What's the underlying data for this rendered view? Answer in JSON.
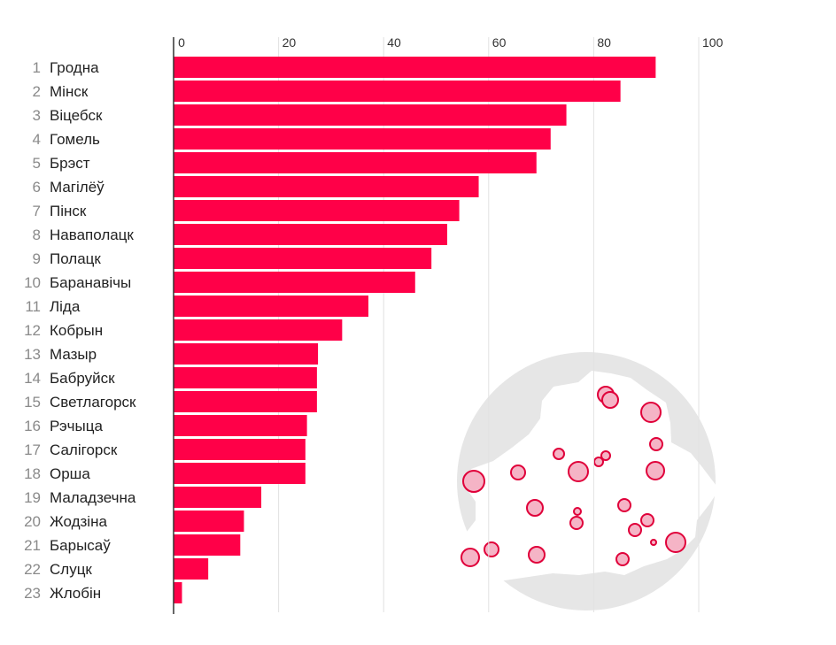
{
  "chart_data": {
    "type": "bar",
    "orientation": "horizontal",
    "title": "",
    "xlabel": "",
    "ylabel": "",
    "xlim": [
      0,
      100
    ],
    "x_ticks": [
      "0",
      "20",
      "40",
      "60",
      "80",
      "100"
    ],
    "grid": true,
    "bar_color": "#ff0048",
    "categories": [
      {
        "rank": "1",
        "name": "Гродна"
      },
      {
        "rank": "2",
        "name": "Мінск"
      },
      {
        "rank": "3",
        "name": "Віцебск"
      },
      {
        "rank": "4",
        "name": "Гомель"
      },
      {
        "rank": "5",
        "name": "Брэст"
      },
      {
        "rank": "6",
        "name": "Магілёў"
      },
      {
        "rank": "7",
        "name": "Пінск"
      },
      {
        "rank": "8",
        "name": "Наваполацк"
      },
      {
        "rank": "9",
        "name": "Полацк"
      },
      {
        "rank": "10",
        "name": "Баранавічы"
      },
      {
        "rank": "11",
        "name": "Ліда"
      },
      {
        "rank": "12",
        "name": "Кобрын"
      },
      {
        "rank": "13",
        "name": "Мазыр"
      },
      {
        "rank": "14",
        "name": "Бабруйск"
      },
      {
        "rank": "15",
        "name": "Светлагорск"
      },
      {
        "rank": "16",
        "name": "Рэчыца"
      },
      {
        "rank": "17",
        "name": "Салігорск"
      },
      {
        "rank": "18",
        "name": "Орша"
      },
      {
        "rank": "19",
        "name": "Маладзечна"
      },
      {
        "rank": "20",
        "name": "Жодзіна"
      },
      {
        "rank": "21",
        "name": "Барысаў"
      },
      {
        "rank": "22",
        "name": "Слуцк"
      },
      {
        "rank": "23",
        "name": "Жлобін"
      }
    ],
    "values": [
      91.8,
      85.1,
      74.8,
      71.8,
      69.1,
      58.1,
      54.4,
      52.1,
      49.1,
      46.0,
      37.1,
      32.1,
      27.5,
      27.3,
      27.3,
      25.4,
      25.1,
      25.1,
      16.7,
      13.4,
      12.7,
      6.6,
      1.6
    ]
  },
  "map_inset": {
    "circle_color": "#e6e6e6",
    "country_color": "#ffffff",
    "marker_fill": "#f5b4c6",
    "marker_stroke": "#e0003a",
    "marker_icon": "city-marker-icon"
  }
}
